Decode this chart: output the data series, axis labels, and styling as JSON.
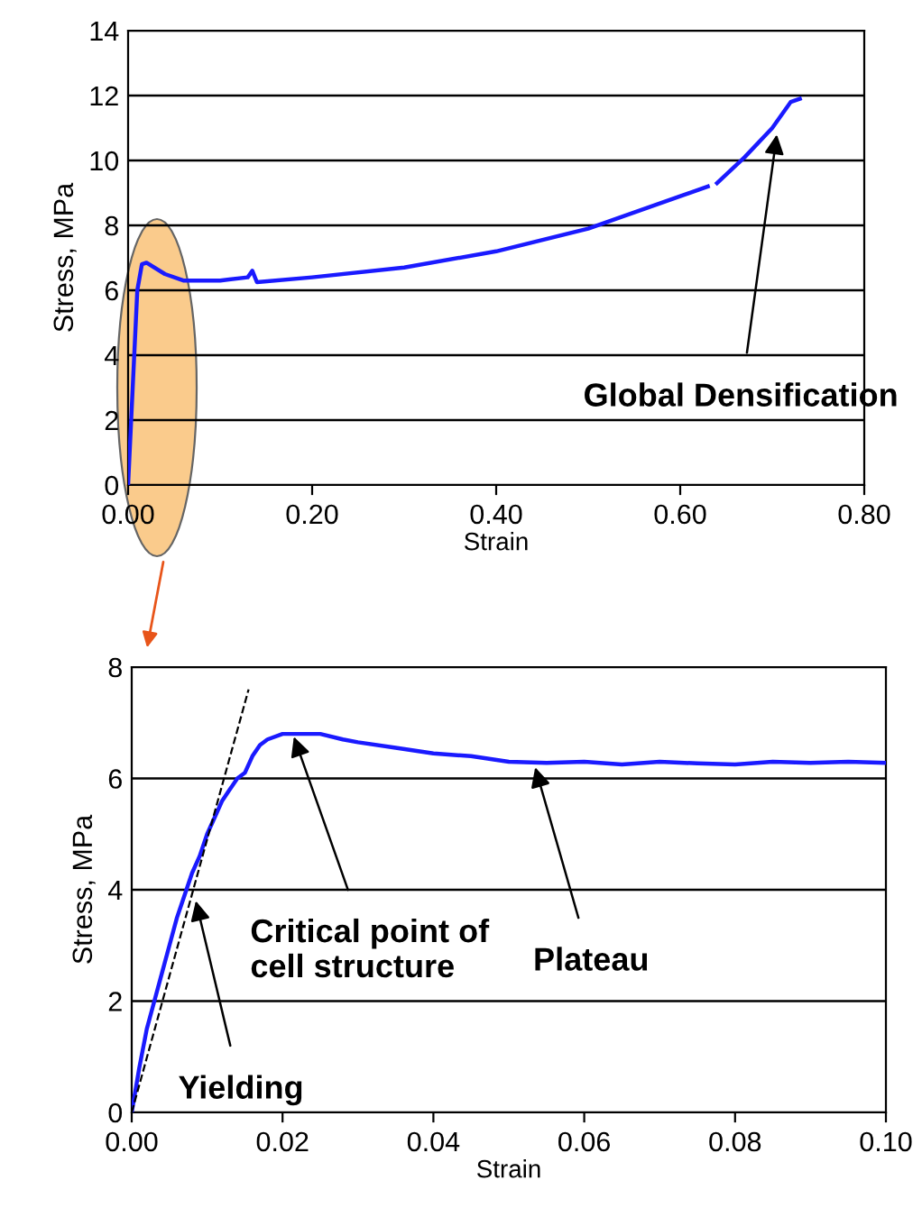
{
  "chart_data": [
    {
      "type": "line",
      "xlabel": "Strain",
      "ylabel": "Stress, MPa",
      "xlim": [
        0,
        0.8
      ],
      "ylim": [
        0,
        14
      ],
      "xticks": [
        {
          "value": 0,
          "label": "0.00"
        },
        {
          "value": 0.2,
          "label": "0.20"
        },
        {
          "value": 0.4,
          "label": "0.40"
        },
        {
          "value": 0.6,
          "label": "0.60"
        },
        {
          "value": 0.8,
          "label": "0.80"
        }
      ],
      "yticks": [
        0,
        2,
        4,
        6,
        8,
        10,
        12,
        14
      ],
      "grid": "y",
      "legend": false,
      "x": [
        0,
        0.005,
        0.01,
        0.015,
        0.02,
        0.04,
        0.06,
        0.1,
        0.13,
        0.135,
        0.14,
        0.2,
        0.3,
        0.4,
        0.5,
        0.55,
        0.6,
        0.63,
        0.635,
        0.64,
        0.67,
        0.7,
        0.72,
        0.73
      ],
      "series": [
        {
          "color": "#1a1aff",
          "values": [
            0,
            3,
            6,
            6.8,
            6.85,
            6.5,
            6.3,
            6.3,
            6.4,
            6.6,
            6.25,
            6.4,
            6.7,
            7.2,
            7.9,
            8.4,
            8.9,
            9.2,
            null,
            9.3,
            10.1,
            11.0,
            11.8,
            11.9
          ]
        }
      ],
      "annotations": [
        {
          "text": "Global Densification",
          "x": 0.705,
          "y": 10.8
        }
      ]
    },
    {
      "type": "line",
      "xlabel": "Strain",
      "ylabel": "Stress, MPa",
      "xlim": [
        0,
        0.1
      ],
      "ylim": [
        0,
        8
      ],
      "xticks": [
        {
          "value": 0,
          "label": "0.00"
        },
        {
          "value": 0.02,
          "label": "0.02"
        },
        {
          "value": 0.04,
          "label": "0.04"
        },
        {
          "value": 0.06,
          "label": "0.06"
        },
        {
          "value": 0.08,
          "label": "0.08"
        },
        {
          "value": 0.1,
          "label": "0.10"
        }
      ],
      "yticks": [
        0,
        2,
        4,
        6,
        8
      ],
      "grid": "y",
      "legend": false,
      "series": [
        {
          "color": "#1a1aff",
          "x": [
            0,
            0.001,
            0.002,
            0.003,
            0.004,
            0.005,
            0.006,
            0.007,
            0.008,
            0.009,
            0.01,
            0.011,
            0.012,
            0.013,
            0.014,
            0.015,
            0.016,
            0.017,
            0.018,
            0.02,
            0.022,
            0.025,
            0.028,
            0.03,
            0.035,
            0.04,
            0.045,
            0.05,
            0.055,
            0.06,
            0.065,
            0.07,
            0.075,
            0.08,
            0.085,
            0.09,
            0.095,
            0.1
          ],
          "values": [
            0,
            0.8,
            1.5,
            2.0,
            2.5,
            3.0,
            3.5,
            3.9,
            4.3,
            4.6,
            5.0,
            5.3,
            5.6,
            5.8,
            6.0,
            6.1,
            6.4,
            6.6,
            6.7,
            6.8,
            6.8,
            6.8,
            6.7,
            6.65,
            6.55,
            6.45,
            6.4,
            6.3,
            6.28,
            6.3,
            6.25,
            6.3,
            6.27,
            6.25,
            6.3,
            6.28,
            6.3,
            6.28
          ]
        },
        {
          "color": "#000000",
          "line_style": "dashed",
          "x": [
            0,
            0.0155
          ],
          "values": [
            0,
            7.6
          ]
        }
      ],
      "annotations": [
        {
          "text": "Yielding",
          "x": 0.0085,
          "y": 3.8
        },
        {
          "text": "Critical point of\ncell structure",
          "x": 0.0215,
          "y": 6.75
        },
        {
          "text": "Plateau",
          "x": 0.0535,
          "y": 6.2
        }
      ]
    }
  ]
}
